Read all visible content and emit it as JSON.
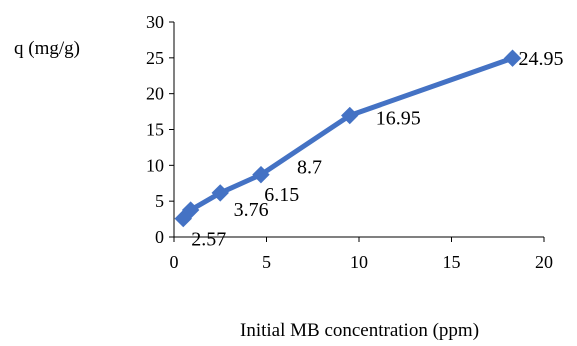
{
  "chart_data": {
    "type": "line",
    "ylabel": "q (mg/g)",
    "xlabel": "Initial MB concentration (ppm)",
    "xlim": [
      0,
      20
    ],
    "ylim": [
      0,
      30
    ],
    "x_ticks": [
      "0",
      "5",
      "10",
      "15",
      "20"
    ],
    "y_ticks": [
      "0",
      "5",
      "10",
      "15",
      "20",
      "25",
      "30"
    ],
    "grid": false,
    "legend": "none",
    "series_color": "#4472c4",
    "marker": "diamond",
    "points": [
      {
        "x": 0.5,
        "y": 2.57,
        "label": "2.57"
      },
      {
        "x": 0.9,
        "y": 3.76,
        "label": "3.76"
      },
      {
        "x": 2.5,
        "y": 6.15,
        "label": "6.15"
      },
      {
        "x": 4.7,
        "y": 8.7,
        "label": "8.7"
      },
      {
        "x": 9.5,
        "y": 16.95,
        "label": "16.95"
      },
      {
        "x": 18.3,
        "y": 24.95,
        "label": "24.95"
      }
    ]
  }
}
